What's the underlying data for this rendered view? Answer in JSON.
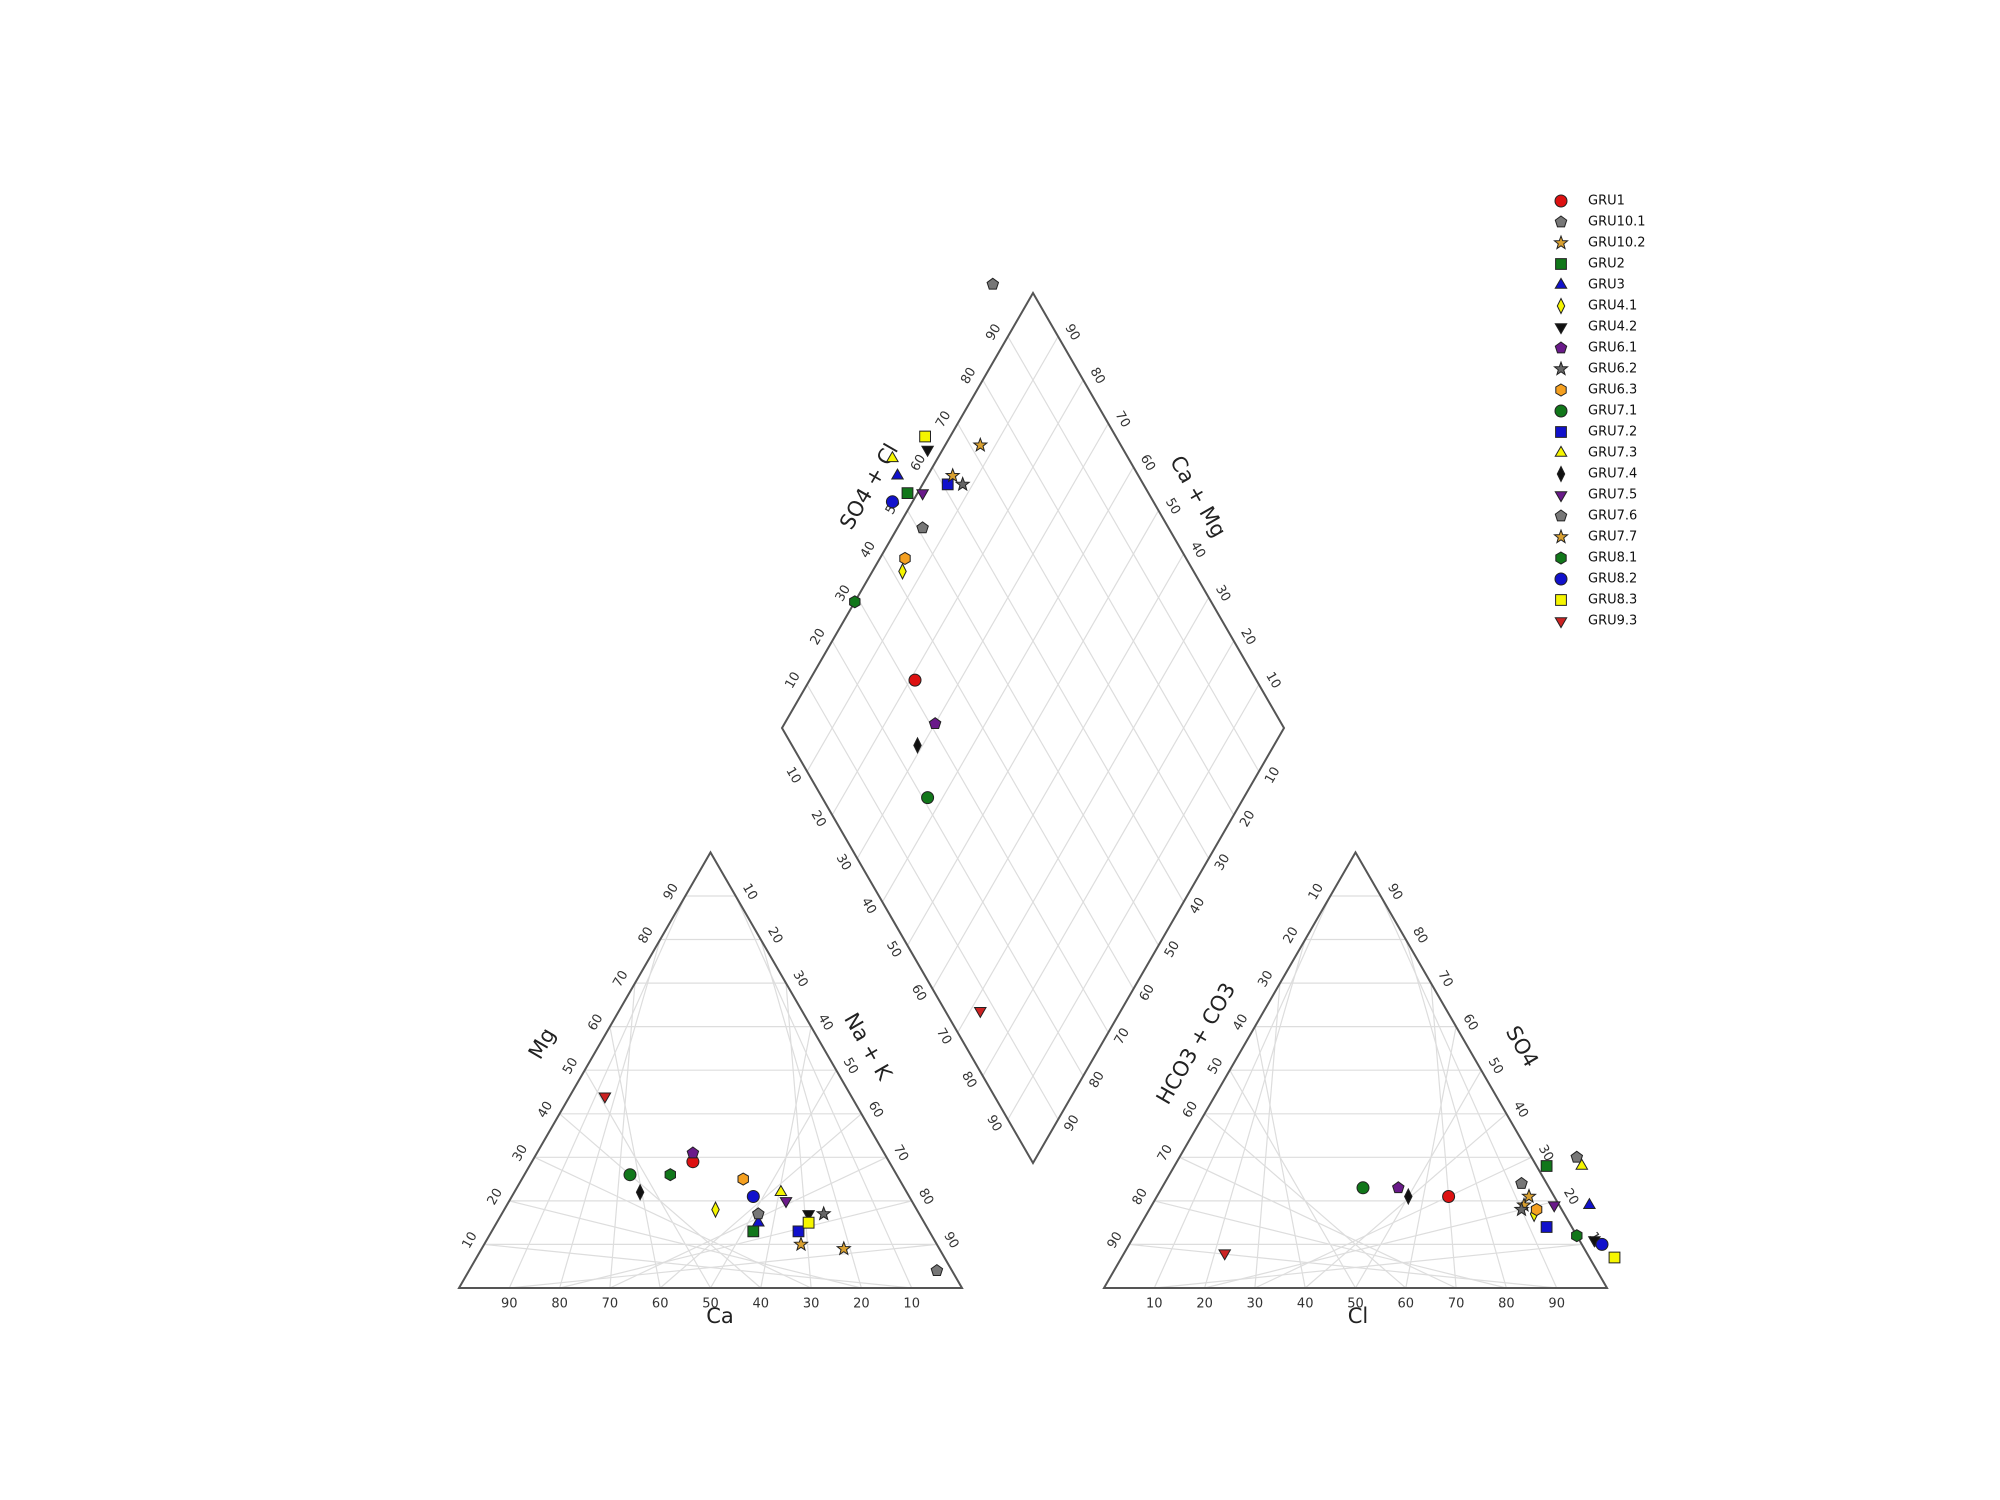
{
  "chart_data": {
    "type": "scatter",
    "diagram": "piper",
    "cation_triangle": {
      "bottom_label": "Ca",
      "left_label": "Mg",
      "right_label": "Na + K",
      "bottom_ticks": [
        "90",
        "80",
        "70",
        "60",
        "50",
        "40",
        "30",
        "20",
        "10"
      ],
      "left_ticks": [
        "10",
        "20",
        "30",
        "40",
        "50",
        "60",
        "70",
        "80",
        "90"
      ],
      "right_ticks": [
        "10",
        "20",
        "30",
        "40",
        "50",
        "60",
        "70",
        "80",
        "90"
      ]
    },
    "anion_triangle": {
      "bottom_label": "Cl",
      "left_label": "HCO3 + CO3",
      "right_label": "SO4",
      "bottom_ticks": [
        "10",
        "20",
        "30",
        "40",
        "50",
        "60",
        "70",
        "80",
        "90"
      ],
      "left_ticks": [
        "90",
        "80",
        "70",
        "60",
        "50",
        "40",
        "30",
        "20",
        "10"
      ],
      "right_ticks": [
        "90",
        "80",
        "70",
        "60",
        "50",
        "40",
        "30",
        "20",
        "10"
      ]
    },
    "diamond": {
      "upper_left_label": "SO4 + Cl",
      "upper_right_label": "Ca + Mg",
      "upper_left_ticks": [
        "10",
        "20",
        "30",
        "40",
        "50",
        "60",
        "70",
        "80",
        "90"
      ],
      "upper_right_ticks": [
        "90",
        "80",
        "70",
        "60",
        "50",
        "40",
        "30",
        "20",
        "10"
      ],
      "lower_left_ticks": [
        "10",
        "20",
        "30",
        "40",
        "50",
        "60",
        "70",
        "80",
        "90"
      ],
      "lower_right_ticks": [
        "10",
        "20",
        "30",
        "40",
        "50",
        "60",
        "70",
        "80",
        "90"
      ]
    },
    "series": [
      {
        "name": "GRU1",
        "marker": "circle",
        "color": "#dd1111",
        "cation": {
          "ca": 39,
          "mg": 29,
          "nak": 32
        },
        "anion": {
          "cl": 58,
          "so4": 21,
          "hco3": 21
        }
      },
      {
        "name": "GRU10.1",
        "marker": "pentagon",
        "color": "#777777",
        "cation": {
          "ca": 3,
          "mg": 4,
          "nak": 93
        },
        "anion": {
          "cl": 79,
          "so4": 30,
          "hco3": -9
        }
      },
      {
        "name": "GRU10.2",
        "marker": "star",
        "color": "#d9a030",
        "cation": {
          "ca": 19,
          "mg": 9,
          "nak": 72
        },
        "anion": {
          "cl": 74,
          "so4": 19,
          "hco3": 7
        }
      },
      {
        "name": "GRU2",
        "marker": "square",
        "color": "#11771a",
        "cation": {
          "ca": 35,
          "mg": 13,
          "nak": 52
        },
        "anion": {
          "cl": 74,
          "so4": 28,
          "hco3": -2
        }
      },
      {
        "name": "GRU3",
        "marker": "triangle-up",
        "color": "#1111cc",
        "cation": {
          "ca": 33,
          "mg": 15,
          "nak": 52
        },
        "anion": {
          "cl": 87,
          "so4": 19,
          "hco3": -6
        }
      },
      {
        "name": "GRU4.1",
        "marker": "diamond",
        "color": "#f5f500",
        "cation": {
          "ca": 40,
          "mg": 18,
          "nak": 42
        },
        "anion": {
          "cl": 77,
          "so4": 17,
          "hco3": 6
        }
      },
      {
        "name": "GRU4.2",
        "marker": "triangle-down",
        "color": "#111111",
        "cation": {
          "ca": 22,
          "mg": 17,
          "nak": 61
        },
        "anion": {
          "cl": 92,
          "so4": 11,
          "hco3": -3
        }
      },
      {
        "name": "GRU6.1",
        "marker": "pentagon",
        "color": "#6a1a8a",
        "cation": {
          "ca": 38,
          "mg": 31,
          "nak": 31
        },
        "anion": {
          "cl": 47,
          "so4": 23,
          "hco3": 30
        }
      },
      {
        "name": "GRU6.2",
        "marker": "star",
        "color": "#666666",
        "cation": {
          "ca": 19,
          "mg": 17,
          "nak": 64
        },
        "anion": {
          "cl": 74,
          "so4": 18,
          "hco3": 8
        }
      },
      {
        "name": "GRU6.3",
        "marker": "hexagon",
        "color": "#f5a020",
        "cation": {
          "ca": 31,
          "mg": 25,
          "nak": 44
        },
        "anion": {
          "cl": 77,
          "so4": 18,
          "hco3": 5
        }
      },
      {
        "name": "GRU7.1",
        "marker": "circle",
        "color": "#11771a",
        "cation": {
          "ca": 53,
          "mg": 26,
          "nak": 21
        },
        "anion": {
          "cl": 40,
          "so4": 23,
          "hco3": 37
        }
      },
      {
        "name": "GRU7.2",
        "marker": "square",
        "color": "#1111cc",
        "cation": {
          "ca": 26,
          "mg": 13,
          "nak": 61
        },
        "anion": {
          "cl": 81,
          "so4": 14,
          "hco3": 5
        }
      },
      {
        "name": "GRU7.3",
        "marker": "triangle-up",
        "color": "#f5f500",
        "cation": {
          "ca": 25,
          "mg": 22,
          "nak": 53
        },
        "anion": {
          "cl": 81,
          "so4": 28,
          "hco3": -9
        }
      },
      {
        "name": "GRU7.4",
        "marker": "diamond",
        "color": "#111111",
        "cation": {
          "ca": 53,
          "mg": 22,
          "nak": 25
        },
        "anion": {
          "cl": 50,
          "so4": 21,
          "hco3": 29
        }
      },
      {
        "name": "GRU7.5",
        "marker": "triangle-down",
        "color": "#6a1a8a",
        "cation": {
          "ca": 25,
          "mg": 20,
          "nak": 55
        },
        "anion": {
          "cl": 80,
          "so4": 19,
          "hco3": 1
        }
      },
      {
        "name": "GRU7.6",
        "marker": "pentagon",
        "color": "#777777",
        "cation": {
          "ca": 32,
          "mg": 17,
          "nak": 51
        },
        "anion": {
          "cl": 71,
          "so4": 24,
          "hco3": 5
        }
      },
      {
        "name": "GRU7.7",
        "marker": "star",
        "color": "#d9a030",
        "cation": {
          "ca": 27,
          "mg": 10,
          "nak": 63
        },
        "anion": {
          "cl": 74,
          "so4": 21,
          "hco3": 5
        }
      },
      {
        "name": "GRU8.1",
        "marker": "hexagon",
        "color": "#11771a",
        "cation": {
          "ca": 45,
          "mg": 26,
          "nak": 29
        },
        "anion": {
          "cl": 88,
          "so4": 12,
          "hco3": 0
        }
      },
      {
        "name": "GRU8.2",
        "marker": "circle",
        "color": "#1111cc",
        "cation": {
          "ca": 31,
          "mg": 21,
          "nak": 48
        },
        "anion": {
          "cl": 94,
          "so4": 10,
          "hco3": -4
        }
      },
      {
        "name": "GRU8.3",
        "marker": "square",
        "color": "#f5f500",
        "cation": {
          "ca": 23,
          "mg": 15,
          "nak": 62
        },
        "anion": {
          "cl": 98,
          "so4": 7,
          "hco3": -5
        }
      },
      {
        "name": "GRU9.3",
        "marker": "triangle-down",
        "color": "#cc2222",
        "cation": {
          "ca": 49,
          "mg": 44,
          "nak": 7
        },
        "anion": {
          "cl": 20,
          "so4": 8,
          "hco3": 72
        }
      }
    ]
  }
}
